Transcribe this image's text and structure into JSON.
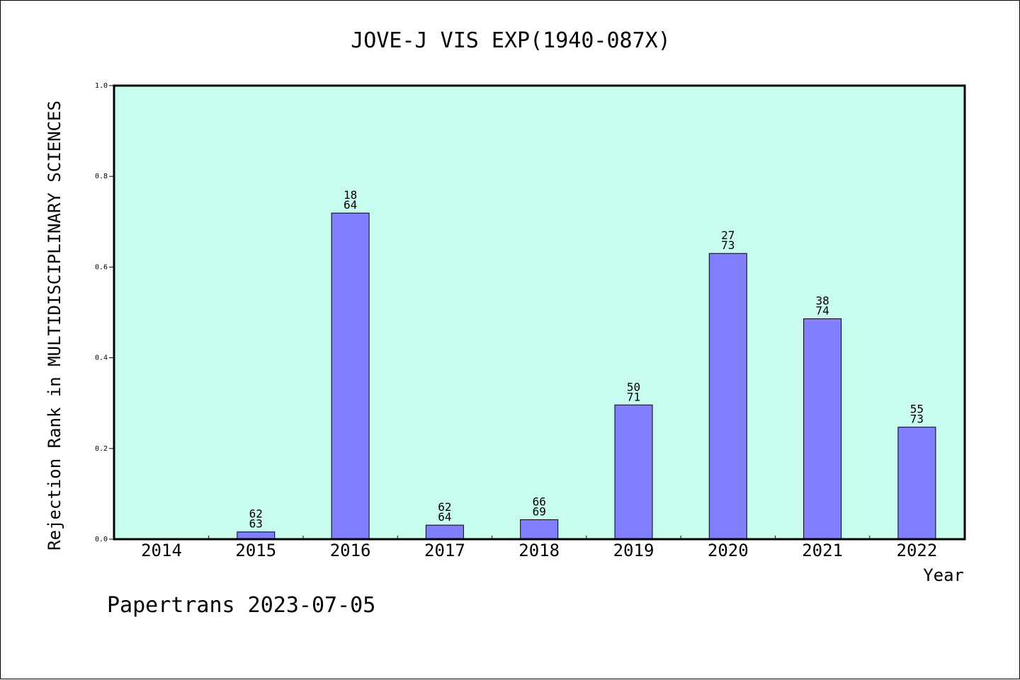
{
  "chart_data": {
    "type": "bar",
    "title": "JOVE-J VIS EXP(1940-087X)",
    "xlabel": "Year",
    "ylabel": "Rejection Rank in MULTIDISCIPLINARY SCIENCES",
    "ylim": [
      0,
      1.0
    ],
    "yticks": [
      "0.0",
      "0.2",
      "0.4",
      "0.6",
      "0.8",
      "1.0"
    ],
    "categories": [
      "2014",
      "2015",
      "2016",
      "2017",
      "2018",
      "2019",
      "2020",
      "2021",
      "2022"
    ],
    "values": [
      0,
      0.016,
      0.719,
      0.031,
      0.043,
      0.296,
      0.63,
      0.486,
      0.247
    ],
    "labels": [
      null,
      [
        "62",
        "63"
      ],
      [
        "18",
        "64"
      ],
      [
        "62",
        "64"
      ],
      [
        "66",
        "69"
      ],
      [
        "50",
        "71"
      ],
      [
        "27",
        "73"
      ],
      [
        "38",
        "74"
      ],
      [
        "55",
        "73"
      ]
    ],
    "grid": false,
    "plot_background": "#c8fcef",
    "bar_color": "#8080ff"
  },
  "footer": "Papertrans 2023-07-05"
}
